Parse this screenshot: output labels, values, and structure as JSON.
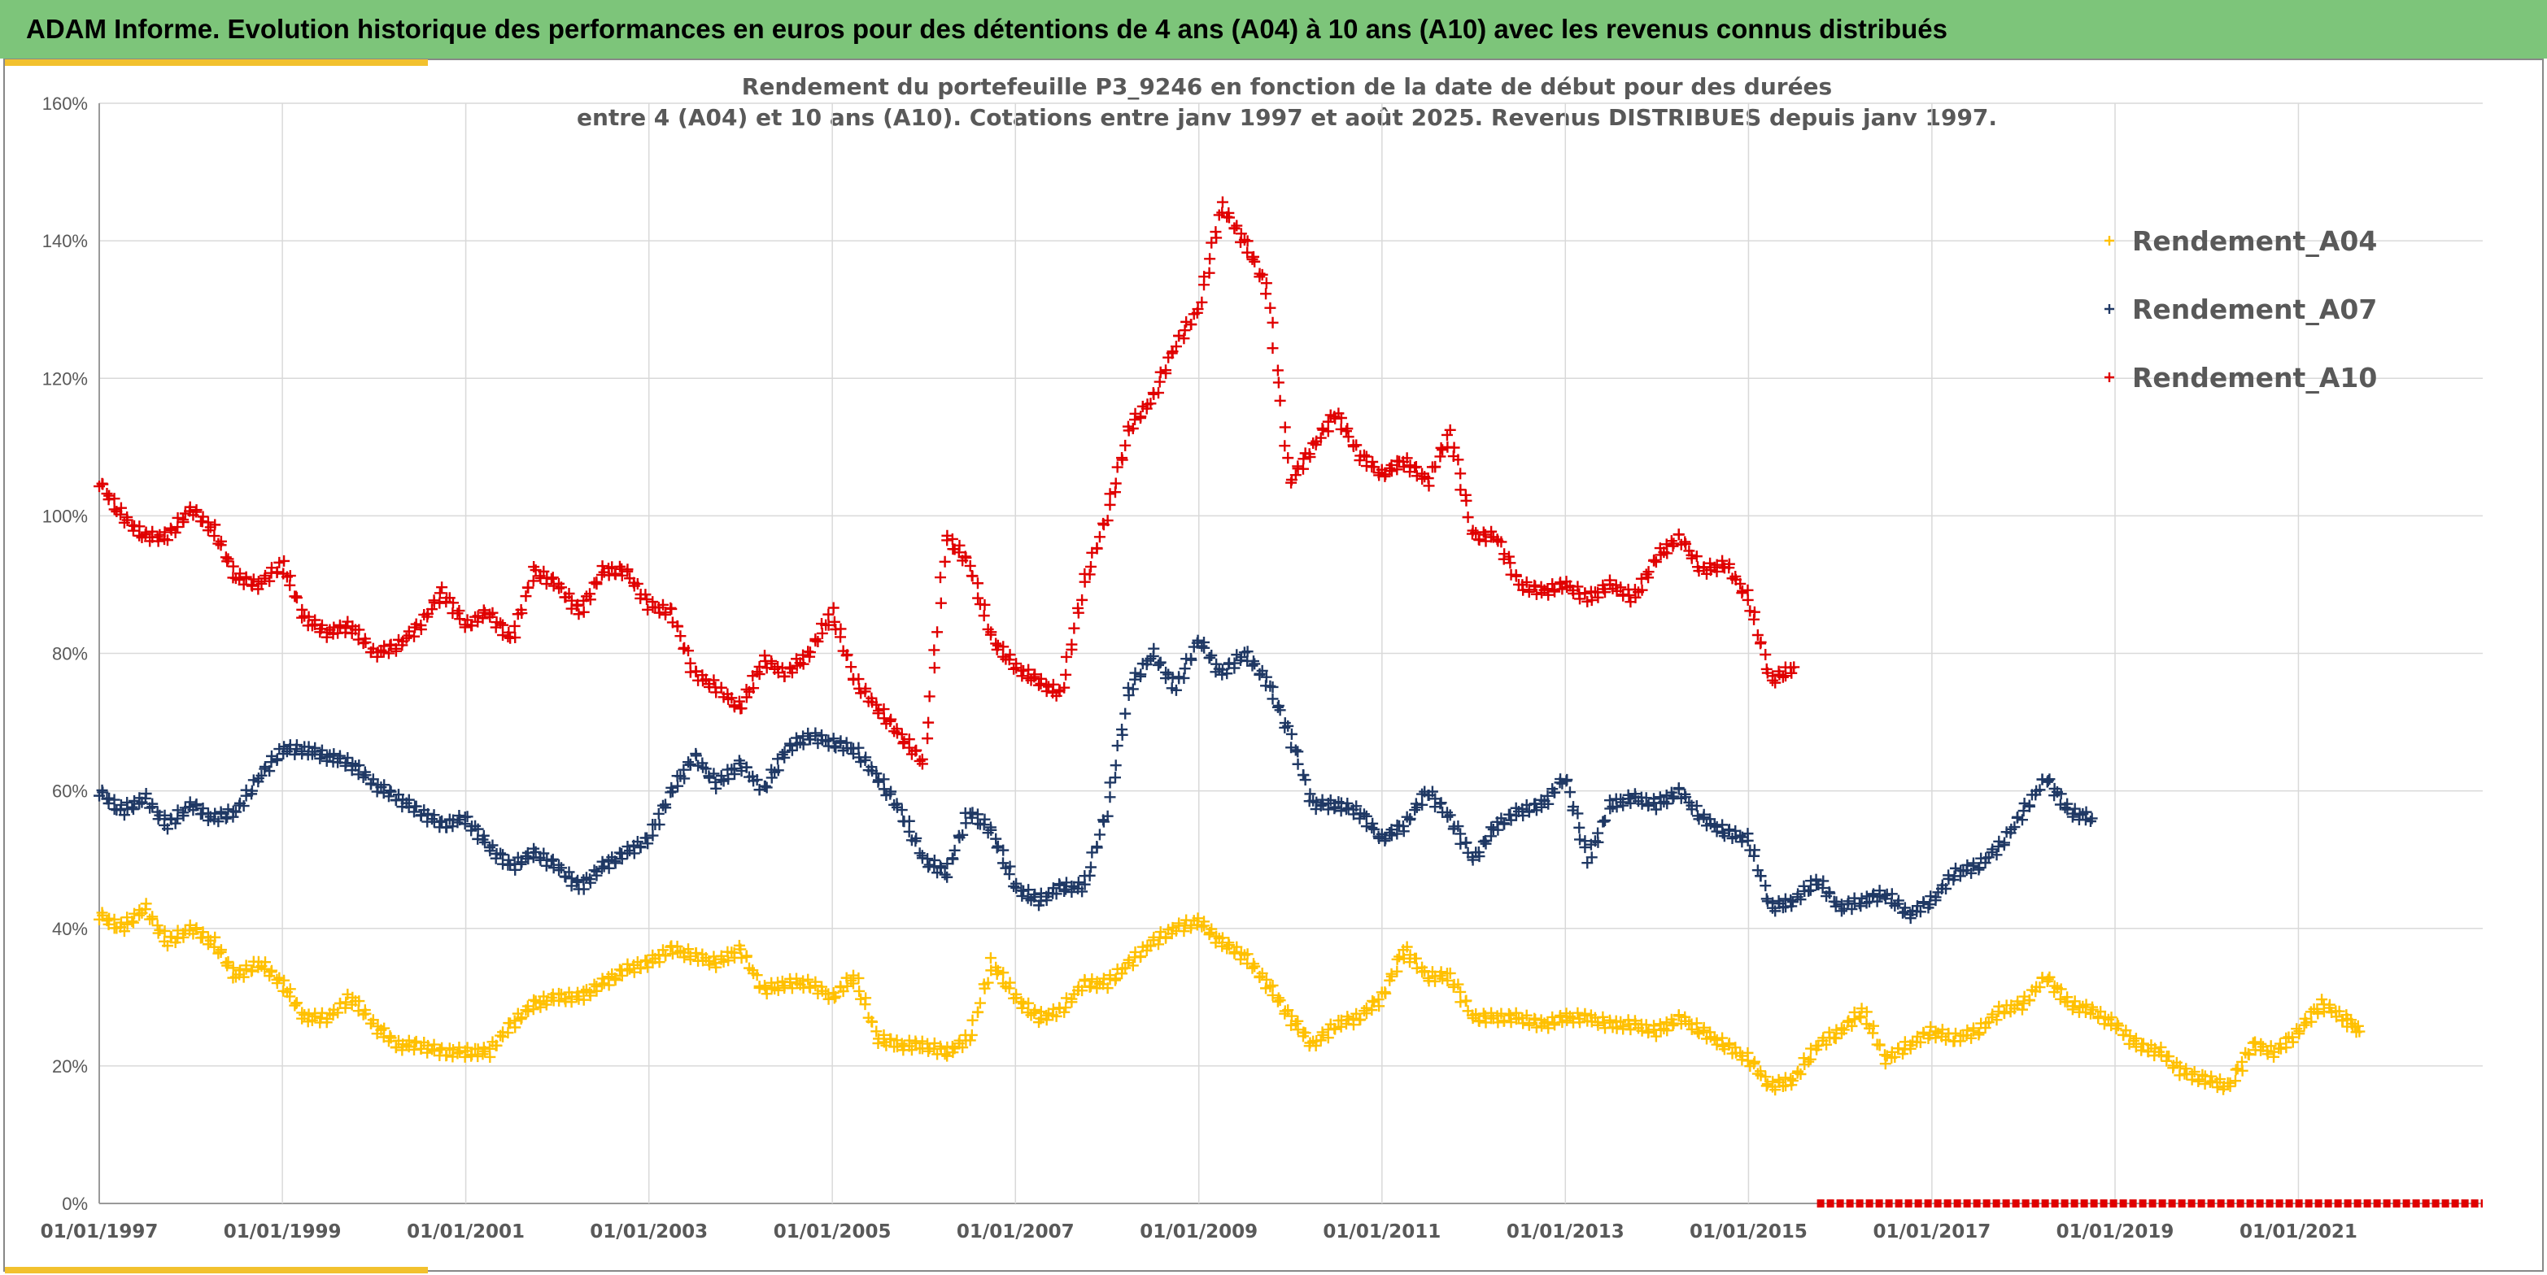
{
  "header": {
    "title": "ADAM Informe. Evolution historique des performances en euros pour des détentions de 4 ans (A04) à 10 ans (A10) avec les revenus connus distribués"
  },
  "colors": {
    "header_bg": "#7dc57a",
    "accent": "#f2c12e",
    "A04": "#ffc000",
    "A07": "#1f3864",
    "A10": "#e00000"
  },
  "chart_data": {
    "type": "scatter",
    "title_lines": [
      "Rendement du portefeuille P3_9246 en fonction de la date de début pour des durées",
      "entre 4 (A04) et 10 ans (A10). Cotations entre janv 1997 et août 2025. Revenus DISTRIBUES depuis janv 1997."
    ],
    "x_axis": {
      "type": "date",
      "range": [
        "1997-01-01",
        "2022-01-01"
      ],
      "tick_labels": [
        "01/01/1997",
        "01/01/1999",
        "01/01/2001",
        "01/01/2003",
        "01/01/2005",
        "01/01/2007",
        "01/01/2009",
        "01/01/2011",
        "01/01/2013",
        "01/01/2015",
        "01/01/2017",
        "01/01/2019",
        "01/01/2021"
      ]
    },
    "y_axis": {
      "range": [
        0,
        1.6
      ],
      "format": "percent",
      "tick_labels": [
        "0%",
        "20%",
        "40%",
        "60%",
        "80%",
        "100%",
        "120%",
        "140%",
        "160%"
      ]
    },
    "grid": true,
    "legend_position": "right-top",
    "marker": "+",
    "series": [
      {
        "name": "Rendement_A04",
        "color": "#ffc000",
        "points": [
          [
            "1997-01-01",
            0.42
          ],
          [
            "1997-04-01",
            0.4
          ],
          [
            "1997-07-01",
            0.43
          ],
          [
            "1997-10-01",
            0.38
          ],
          [
            "1998-01-01",
            0.4
          ],
          [
            "1998-04-01",
            0.38
          ],
          [
            "1998-07-01",
            0.33
          ],
          [
            "1998-10-01",
            0.35
          ],
          [
            "1999-01-01",
            0.32
          ],
          [
            "1999-04-01",
            0.27
          ],
          [
            "1999-07-01",
            0.27
          ],
          [
            "1999-10-01",
            0.3
          ],
          [
            "2000-01-01",
            0.26
          ],
          [
            "2000-04-01",
            0.23
          ],
          [
            "2000-07-01",
            0.23
          ],
          [
            "2000-10-01",
            0.22
          ],
          [
            "2001-01-01",
            0.22
          ],
          [
            "2001-04-01",
            0.22
          ],
          [
            "2001-07-01",
            0.26
          ],
          [
            "2001-10-01",
            0.29
          ],
          [
            "2002-01-01",
            0.3
          ],
          [
            "2002-04-01",
            0.3
          ],
          [
            "2002-07-01",
            0.32
          ],
          [
            "2002-10-01",
            0.34
          ],
          [
            "2003-01-01",
            0.35
          ],
          [
            "2003-04-01",
            0.37
          ],
          [
            "2003-07-01",
            0.36
          ],
          [
            "2003-10-01",
            0.35
          ],
          [
            "2004-01-01",
            0.37
          ],
          [
            "2004-04-01",
            0.31
          ],
          [
            "2004-07-01",
            0.32
          ],
          [
            "2004-10-01",
            0.32
          ],
          [
            "2005-01-01",
            0.3
          ],
          [
            "2005-04-01",
            0.33
          ],
          [
            "2005-07-01",
            0.24
          ],
          [
            "2005-10-01",
            0.23
          ],
          [
            "2006-01-01",
            0.23
          ],
          [
            "2006-04-01",
            0.22
          ],
          [
            "2006-07-01",
            0.24
          ],
          [
            "2006-10-01",
            0.35
          ],
          [
            "2007-01-01",
            0.3
          ],
          [
            "2007-04-01",
            0.27
          ],
          [
            "2007-07-01",
            0.28
          ],
          [
            "2007-10-01",
            0.32
          ],
          [
            "2008-01-01",
            0.32
          ],
          [
            "2008-04-01",
            0.35
          ],
          [
            "2008-07-01",
            0.38
          ],
          [
            "2008-10-01",
            0.4
          ],
          [
            "2009-01-01",
            0.41
          ],
          [
            "2009-04-01",
            0.38
          ],
          [
            "2009-07-01",
            0.36
          ],
          [
            "2009-10-01",
            0.32
          ],
          [
            "2010-01-01",
            0.27
          ],
          [
            "2010-04-01",
            0.23
          ],
          [
            "2010-07-01",
            0.26
          ],
          [
            "2010-10-01",
            0.27
          ],
          [
            "2011-01-01",
            0.3
          ],
          [
            "2011-04-01",
            0.37
          ],
          [
            "2011-07-01",
            0.33
          ],
          [
            "2011-10-01",
            0.33
          ],
          [
            "2012-01-01",
            0.27
          ],
          [
            "2012-04-01",
            0.27
          ],
          [
            "2012-07-01",
            0.27
          ],
          [
            "2012-10-01",
            0.26
          ],
          [
            "2013-01-01",
            0.27
          ],
          [
            "2013-04-01",
            0.27
          ],
          [
            "2013-07-01",
            0.26
          ],
          [
            "2013-10-01",
            0.26
          ],
          [
            "2014-01-01",
            0.25
          ],
          [
            "2014-04-01",
            0.27
          ],
          [
            "2014-07-01",
            0.25
          ],
          [
            "2014-10-01",
            0.23
          ],
          [
            "2015-01-01",
            0.21
          ],
          [
            "2015-04-01",
            0.17
          ],
          [
            "2015-07-01",
            0.18
          ],
          [
            "2015-10-01",
            0.23
          ],
          [
            "2016-01-01",
            0.25
          ],
          [
            "2016-04-01",
            0.28
          ],
          [
            "2016-07-01",
            0.21
          ],
          [
            "2016-10-01",
            0.23
          ],
          [
            "2017-01-01",
            0.25
          ],
          [
            "2017-04-01",
            0.24
          ],
          [
            "2017-07-01",
            0.25
          ],
          [
            "2017-10-01",
            0.28
          ],
          [
            "2018-01-01",
            0.29
          ],
          [
            "2018-04-01",
            0.33
          ],
          [
            "2018-07-01",
            0.29
          ],
          [
            "2018-10-01",
            0.28
          ],
          [
            "2019-01-01",
            0.26
          ],
          [
            "2019-04-01",
            0.23
          ],
          [
            "2019-07-01",
            0.22
          ],
          [
            "2019-10-01",
            0.19
          ],
          [
            "2020-01-01",
            0.18
          ],
          [
            "2020-04-01",
            0.17
          ],
          [
            "2020-07-01",
            0.23
          ],
          [
            "2020-10-01",
            0.22
          ],
          [
            "2021-01-01",
            0.25
          ],
          [
            "2021-04-01",
            0.29
          ],
          [
            "2021-07-01",
            0.27
          ],
          [
            "2021-09-01",
            0.25
          ]
        ]
      },
      {
        "name": "Rendement_A07",
        "color": "#1f3864",
        "points": [
          [
            "1997-01-01",
            0.6
          ],
          [
            "1997-04-01",
            0.57
          ],
          [
            "1997-07-01",
            0.59
          ],
          [
            "1997-10-01",
            0.55
          ],
          [
            "1998-01-01",
            0.58
          ],
          [
            "1998-04-01",
            0.56
          ],
          [
            "1998-07-01",
            0.57
          ],
          [
            "1998-10-01",
            0.62
          ],
          [
            "1999-01-01",
            0.66
          ],
          [
            "1999-04-01",
            0.66
          ],
          [
            "1999-07-01",
            0.65
          ],
          [
            "1999-10-01",
            0.64
          ],
          [
            "2000-01-01",
            0.61
          ],
          [
            "2000-04-01",
            0.59
          ],
          [
            "2000-07-01",
            0.57
          ],
          [
            "2000-10-01",
            0.55
          ],
          [
            "2001-01-01",
            0.56
          ],
          [
            "2001-04-01",
            0.52
          ],
          [
            "2001-07-01",
            0.49
          ],
          [
            "2001-10-01",
            0.51
          ],
          [
            "2002-01-01",
            0.49
          ],
          [
            "2002-04-01",
            0.46
          ],
          [
            "2002-07-01",
            0.49
          ],
          [
            "2002-10-01",
            0.51
          ],
          [
            "2003-01-01",
            0.53
          ],
          [
            "2003-04-01",
            0.6
          ],
          [
            "2003-07-01",
            0.65
          ],
          [
            "2003-10-01",
            0.61
          ],
          [
            "2004-01-01",
            0.64
          ],
          [
            "2004-04-01",
            0.6
          ],
          [
            "2004-07-01",
            0.66
          ],
          [
            "2004-10-01",
            0.68
          ],
          [
            "2005-01-01",
            0.67
          ],
          [
            "2005-04-01",
            0.66
          ],
          [
            "2005-07-01",
            0.62
          ],
          [
            "2005-10-01",
            0.57
          ],
          [
            "2006-01-01",
            0.5
          ],
          [
            "2006-04-01",
            0.48
          ],
          [
            "2006-07-01",
            0.57
          ],
          [
            "2006-10-01",
            0.54
          ],
          [
            "2007-01-01",
            0.46
          ],
          [
            "2007-04-01",
            0.44
          ],
          [
            "2007-07-01",
            0.46
          ],
          [
            "2007-10-01",
            0.46
          ],
          [
            "2008-01-01",
            0.57
          ],
          [
            "2008-04-01",
            0.75
          ],
          [
            "2008-07-01",
            0.8
          ],
          [
            "2008-10-01",
            0.75
          ],
          [
            "2009-01-01",
            0.82
          ],
          [
            "2009-04-01",
            0.77
          ],
          [
            "2009-07-01",
            0.8
          ],
          [
            "2009-10-01",
            0.76
          ],
          [
            "2010-01-01",
            0.68
          ],
          [
            "2010-04-01",
            0.58
          ],
          [
            "2010-07-01",
            0.58
          ],
          [
            "2010-10-01",
            0.57
          ],
          [
            "2011-01-01",
            0.53
          ],
          [
            "2011-04-01",
            0.55
          ],
          [
            "2011-07-01",
            0.6
          ],
          [
            "2011-10-01",
            0.56
          ],
          [
            "2012-01-01",
            0.5
          ],
          [
            "2012-04-01",
            0.55
          ],
          [
            "2012-07-01",
            0.57
          ],
          [
            "2012-10-01",
            0.58
          ],
          [
            "2013-01-01",
            0.62
          ],
          [
            "2013-04-01",
            0.5
          ],
          [
            "2013-07-01",
            0.58
          ],
          [
            "2013-10-01",
            0.59
          ],
          [
            "2014-01-01",
            0.58
          ],
          [
            "2014-04-01",
            0.6
          ],
          [
            "2014-07-01",
            0.56
          ],
          [
            "2014-10-01",
            0.54
          ],
          [
            "2015-01-01",
            0.53
          ],
          [
            "2015-04-01",
            0.43
          ],
          [
            "2015-07-01",
            0.44
          ],
          [
            "2015-10-01",
            0.47
          ],
          [
            "2016-01-01",
            0.43
          ],
          [
            "2016-04-01",
            0.44
          ],
          [
            "2016-07-01",
            0.45
          ],
          [
            "2016-10-01",
            0.42
          ],
          [
            "2017-01-01",
            0.44
          ],
          [
            "2017-04-01",
            0.48
          ],
          [
            "2017-07-01",
            0.49
          ],
          [
            "2017-10-01",
            0.52
          ],
          [
            "2018-01-01",
            0.57
          ],
          [
            "2018-04-01",
            0.62
          ],
          [
            "2018-07-01",
            0.57
          ],
          [
            "2018-10-01",
            0.56
          ]
        ]
      },
      {
        "name": "Rendement_A10",
        "color": "#e00000",
        "points": [
          [
            "1997-01-01",
            1.05
          ],
          [
            "1997-04-01",
            1.0
          ],
          [
            "1997-07-01",
            0.97
          ],
          [
            "1997-10-01",
            0.97
          ],
          [
            "1998-01-01",
            1.01
          ],
          [
            "1998-04-01",
            0.98
          ],
          [
            "1998-07-01",
            0.91
          ],
          [
            "1998-10-01",
            0.9
          ],
          [
            "1999-01-01",
            0.93
          ],
          [
            "1999-04-01",
            0.85
          ],
          [
            "1999-07-01",
            0.83
          ],
          [
            "1999-10-01",
            0.84
          ],
          [
            "2000-01-01",
            0.8
          ],
          [
            "2000-04-01",
            0.81
          ],
          [
            "2000-07-01",
            0.84
          ],
          [
            "2000-10-01",
            0.89
          ],
          [
            "2001-01-01",
            0.84
          ],
          [
            "2001-04-01",
            0.86
          ],
          [
            "2001-07-01",
            0.82
          ],
          [
            "2001-10-01",
            0.92
          ],
          [
            "2002-01-01",
            0.9
          ],
          [
            "2002-04-01",
            0.86
          ],
          [
            "2002-07-01",
            0.92
          ],
          [
            "2002-10-01",
            0.92
          ],
          [
            "2003-01-01",
            0.87
          ],
          [
            "2003-04-01",
            0.86
          ],
          [
            "2003-07-01",
            0.77
          ],
          [
            "2003-10-01",
            0.75
          ],
          [
            "2004-01-01",
            0.72
          ],
          [
            "2004-04-01",
            0.79
          ],
          [
            "2004-07-01",
            0.77
          ],
          [
            "2004-10-01",
            0.8
          ],
          [
            "2005-01-01",
            0.86
          ],
          [
            "2005-04-01",
            0.76
          ],
          [
            "2005-07-01",
            0.72
          ],
          [
            "2005-10-01",
            0.68
          ],
          [
            "2006-01-01",
            0.64
          ],
          [
            "2006-04-01",
            0.97
          ],
          [
            "2006-07-01",
            0.93
          ],
          [
            "2006-10-01",
            0.82
          ],
          [
            "2007-01-01",
            0.78
          ],
          [
            "2007-04-01",
            0.76
          ],
          [
            "2007-07-01",
            0.74
          ],
          [
            "2007-10-01",
            0.9
          ],
          [
            "2008-01-01",
            1.0
          ],
          [
            "2008-04-01",
            1.13
          ],
          [
            "2008-07-01",
            1.17
          ],
          [
            "2008-10-01",
            1.25
          ],
          [
            "2009-01-01",
            1.3
          ],
          [
            "2009-04-01",
            1.45
          ],
          [
            "2009-07-01",
            1.4
          ],
          [
            "2009-10-01",
            1.33
          ],
          [
            "2010-01-01",
            1.05
          ],
          [
            "2010-04-01",
            1.1
          ],
          [
            "2010-07-01",
            1.15
          ],
          [
            "2010-10-01",
            1.09
          ],
          [
            "2011-01-01",
            1.06
          ],
          [
            "2011-04-01",
            1.08
          ],
          [
            "2011-07-01",
            1.05
          ],
          [
            "2011-10-01",
            1.12
          ],
          [
            "2012-01-01",
            0.97
          ],
          [
            "2012-04-01",
            0.97
          ],
          [
            "2012-07-01",
            0.9
          ],
          [
            "2012-10-01",
            0.89
          ],
          [
            "2013-01-01",
            0.9
          ],
          [
            "2013-04-01",
            0.88
          ],
          [
            "2013-07-01",
            0.9
          ],
          [
            "2013-10-01",
            0.88
          ],
          [
            "2014-01-01",
            0.94
          ],
          [
            "2014-04-01",
            0.97
          ],
          [
            "2014-07-01",
            0.92
          ],
          [
            "2014-10-01",
            0.93
          ],
          [
            "2015-01-01",
            0.88
          ],
          [
            "2015-04-01",
            0.76
          ],
          [
            "2015-07-01",
            0.78
          ]
        ]
      }
    ],
    "zero_band": {
      "color": "#e00000",
      "from": "2015-10-01",
      "to": "2021-12-31",
      "y": 0
    }
  }
}
